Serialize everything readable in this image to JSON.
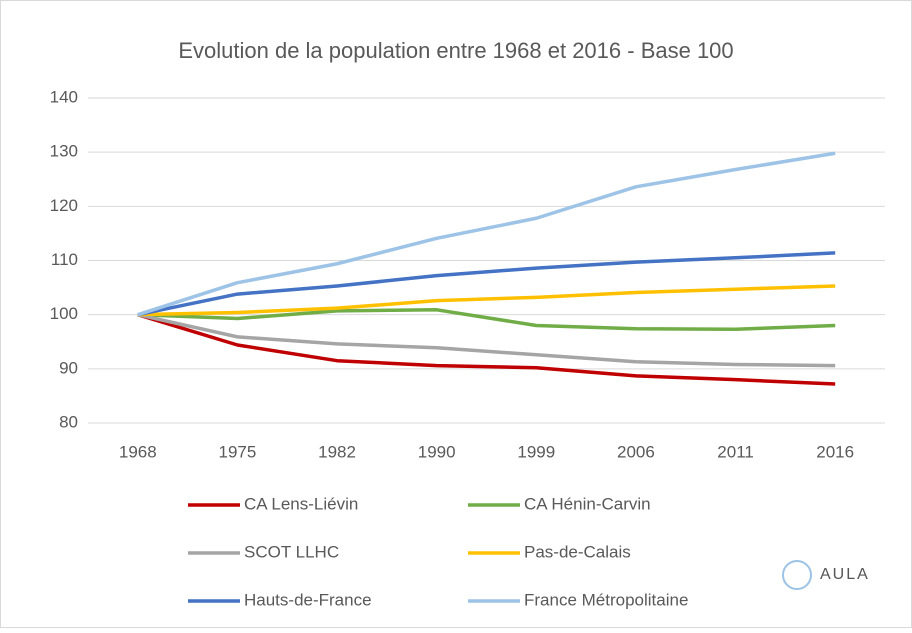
{
  "chart_data": {
    "type": "line",
    "title": "Evolution de la population entre 1968 et 2016 - Base 100",
    "categories": [
      "1968",
      "1975",
      "1982",
      "1990",
      "1999",
      "2006",
      "2011",
      "2016"
    ],
    "series": [
      {
        "name": "CA Lens-Liévin",
        "color": "#c00000",
        "values": [
          100,
          94.4,
          91.5,
          90.6,
          90.2,
          88.7,
          88.0,
          87.2
        ]
      },
      {
        "name": "CA Hénin-Carvin",
        "color": "#70ad47",
        "values": [
          100,
          99.3,
          100.7,
          100.9,
          98.0,
          97.4,
          97.3,
          98.0
        ]
      },
      {
        "name": "SCOT LLHC",
        "color": "#a5a5a5",
        "values": [
          100,
          95.9,
          94.6,
          93.9,
          92.6,
          91.3,
          90.8,
          90.6
        ]
      },
      {
        "name": "Pas-de-Calais",
        "color": "#ffc000",
        "values": [
          100,
          100.4,
          101.2,
          102.6,
          103.2,
          104.1,
          104.7,
          105.3
        ]
      },
      {
        "name": "Hauts-de-France",
        "color": "#4472c4",
        "values": [
          100,
          103.8,
          105.3,
          107.2,
          108.6,
          109.7,
          110.5,
          111.4
        ]
      },
      {
        "name": "France Métropolitaine",
        "color": "#9dc3e6",
        "values": [
          100,
          105.9,
          109.4,
          114.1,
          117.8,
          123.6,
          126.8,
          129.8
        ]
      }
    ],
    "ylim": [
      80,
      140
    ],
    "yticks": [
      80,
      90,
      100,
      110,
      120,
      130,
      140
    ],
    "grid": true,
    "legend": "bottom"
  },
  "logo": "AULA"
}
